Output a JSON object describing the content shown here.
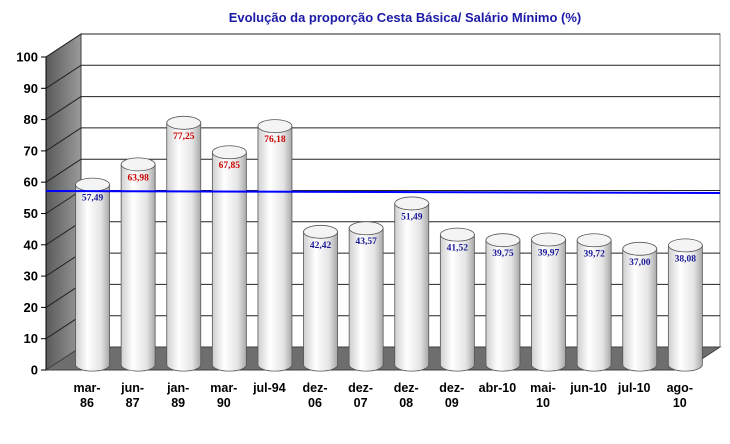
{
  "chart_data": {
    "type": "bar",
    "title": "Evolução da proporção Cesta Básica/ Salário Mínimo (%)",
    "categories": [
      [
        "mar-",
        "86"
      ],
      [
        "jun-",
        "87"
      ],
      [
        "jan-",
        "89"
      ],
      [
        "mar-",
        "90"
      ],
      [
        "jul-94"
      ],
      [
        "dez-",
        "06"
      ],
      [
        "dez-",
        "07"
      ],
      [
        "dez-",
        "08"
      ],
      [
        "dez-",
        "09"
      ],
      [
        "abr-10"
      ],
      [
        "mai-",
        "10"
      ],
      [
        "jun-10"
      ],
      [
        "jul-10"
      ],
      [
        "ago-",
        "10"
      ]
    ],
    "values": [
      57.49,
      63.98,
      77.25,
      67.85,
      76.18,
      42.42,
      43.57,
      51.49,
      41.52,
      39.75,
      39.97,
      39.72,
      37.0,
      38.08
    ],
    "data_labels": [
      "57,49",
      "63,98",
      "77,25",
      "67,85",
      "76,18",
      "42,42",
      "43,57",
      "51,49",
      "41,52",
      "39,75",
      "39,97",
      "39,72",
      "37,00",
      "38,08"
    ],
    "label_colors": [
      "#1a1a99",
      "#cc0000",
      "#cc0000",
      "#cc0000",
      "#cc0000",
      "#1a1a99",
      "#1a1a99",
      "#1a1a99",
      "#1a1a99",
      "#1a1a99",
      "#1a1a99",
      "#1a1a99",
      "#1a1a99",
      "#1a1a99"
    ],
    "ylim": [
      0,
      100
    ],
    "yticks": [
      0,
      10,
      20,
      30,
      40,
      50,
      60,
      70,
      80,
      90,
      100
    ],
    "reference_line": {
      "value": 57.49,
      "color": "#0000ff"
    },
    "grid": true,
    "bar_style": "3d-cylinder",
    "bar_color": "#ffffff",
    "title_color": "#1a1aa6"
  }
}
